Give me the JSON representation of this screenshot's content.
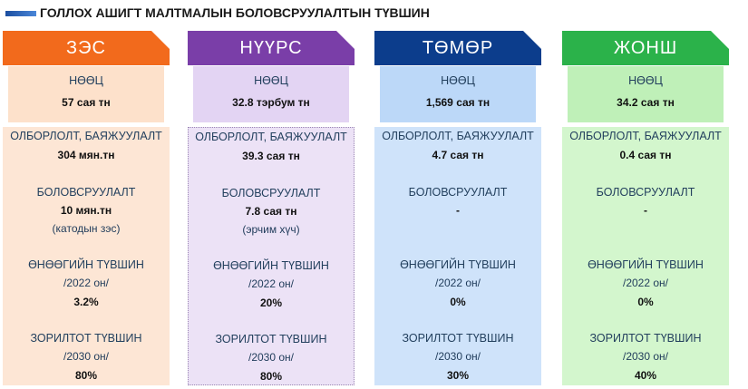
{
  "title": "ГОЛЛОХ АШИГТ МАЛТМАЛЫН БОЛОВСРУУЛАЛТЫН ТҮВШИН",
  "columns": [
    {
      "name": "ЗЭС",
      "reserve_label": "НӨӨЦ",
      "reserve": "57 сая тн",
      "production_label": "ОЛБОРЛОЛТ, БАЯЖУУЛАЛТ",
      "production": "304 мян.тн",
      "processing_label": "БОЛОВСРУУЛАЛТ",
      "processing": "10 мян.тн",
      "processing_note": "(катодын зэс)",
      "current_label": "ӨНӨӨГИЙН ТҮВШИН",
      "current_year": "/2022 он/",
      "current": "3.2%",
      "target_label": "ЗОРИЛТОТ ТҮВШИН",
      "target_year": "/2030 он/",
      "target": "80%"
    },
    {
      "name": "НҮҮРС",
      "reserve_label": "НӨӨЦ",
      "reserve": "32.8 тэрбум тн",
      "production_label": "ОЛБОРЛОЛТ, БАЯЖУУЛАЛТ",
      "production": "39.3 сая тн",
      "processing_label": "БОЛОВСРУУЛАЛТ",
      "processing": "7.8 сая тн",
      "processing_note": "(эрчим хүч)",
      "current_label": "ӨНӨӨГИЙН ТҮВШИН",
      "current_year": "/2022 он/",
      "current": "20%",
      "target_label": "ЗОРИЛТОТ ТҮВШИН",
      "target_year": "/2030 он/",
      "target": "80%"
    },
    {
      "name": "ТӨМӨР",
      "reserve_label": "НӨӨЦ",
      "reserve": "1,569 сая тн",
      "production_label": "ОЛБОРЛОЛТ, БАЯЖУУЛАЛТ",
      "production": "4.7 сая тн",
      "processing_label": "БОЛОВСРУУЛАЛТ",
      "processing": "-",
      "current_label": "ӨНӨӨГИЙН ТҮВШИН",
      "current_year": "/2022 он/",
      "current": "0%",
      "target_label": "ЗОРИЛТОТ ТҮВШИН",
      "target_year": "/2030 он/",
      "target": "30%"
    },
    {
      "name": "ЖОНШ",
      "reserve_label": "НӨӨЦ",
      "reserve": "34.2 сая тн",
      "production_label": "ОЛБОРЛОЛТ, БАЯЖУУЛАЛТ",
      "production": "0.4 сая тн",
      "processing_label": "БОЛОВСРУУЛАЛТ",
      "processing": "-",
      "current_label": "ӨНӨӨГИЙН ТҮВШИН",
      "current_year": "/2022 он/",
      "current": "0%",
      "target_label": "ЗОРИЛТОТ ТҮВШИН",
      "target_year": "/2030 он/",
      "target": "40%"
    }
  ]
}
